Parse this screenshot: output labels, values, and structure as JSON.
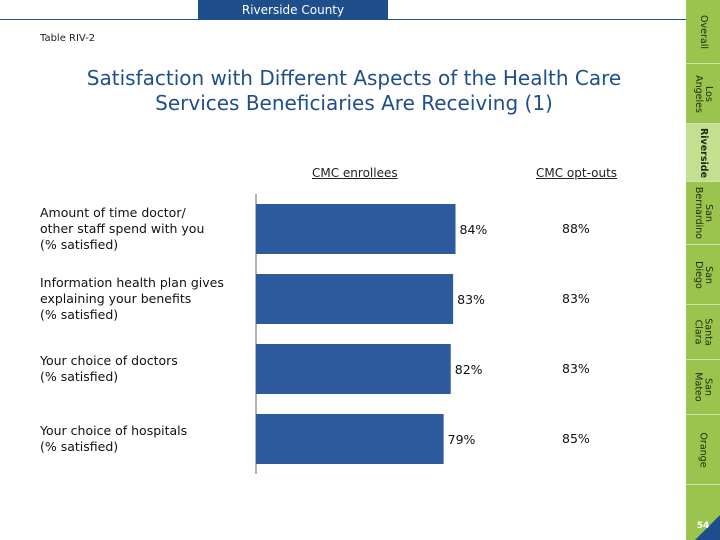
{
  "header": {
    "banner": "Riverside County",
    "table_id": "Table RIV-2",
    "title_line1": "Satisfaction with Different Aspects of the Health Care",
    "title_line2": "Services Beneficiaries Are Receiving (1)"
  },
  "sidebar": {
    "items": [
      {
        "label": "Overall",
        "active": false
      },
      {
        "label": "Los\nAngeles",
        "active": false
      },
      {
        "label": "Riverside",
        "active": true
      },
      {
        "label": "San\nBernardino",
        "active": false
      },
      {
        "label": "San\nDiego",
        "active": false
      },
      {
        "label": "Santa\nClara",
        "active": false
      },
      {
        "label": "San\nMateo",
        "active": false
      },
      {
        "label": "Orange",
        "active": false
      }
    ],
    "page_number": "54"
  },
  "colors": {
    "bar": "#2e5b9e",
    "title": "#1f4e8c",
    "sidebar": "#9ac44e",
    "sidebar_active": "#c3e090"
  },
  "chart_data": {
    "type": "bar",
    "orientation": "horizontal",
    "columns": [
      "CMC enrollees",
      "CMC opt-outs"
    ],
    "categories": [
      "Amount of time doctor/\nother staff spend with you\n(% satisfied)",
      "Information health plan gives\nexplaining your benefits\n(% satisfied)",
      "Your choice of doctors\n(% satisfied)",
      "Your choice of hospitals\n(% satisfied)"
    ],
    "series": [
      {
        "name": "CMC enrollees",
        "values": [
          84,
          83,
          82,
          79
        ],
        "labels": [
          "84%",
          "83%",
          "82%",
          "79%"
        ]
      },
      {
        "name": "CMC opt-outs",
        "values": [
          88,
          83,
          83,
          85
        ],
        "labels": [
          "88%",
          "83%",
          "83%",
          "85%"
        ]
      }
    ],
    "unit": "%"
  }
}
